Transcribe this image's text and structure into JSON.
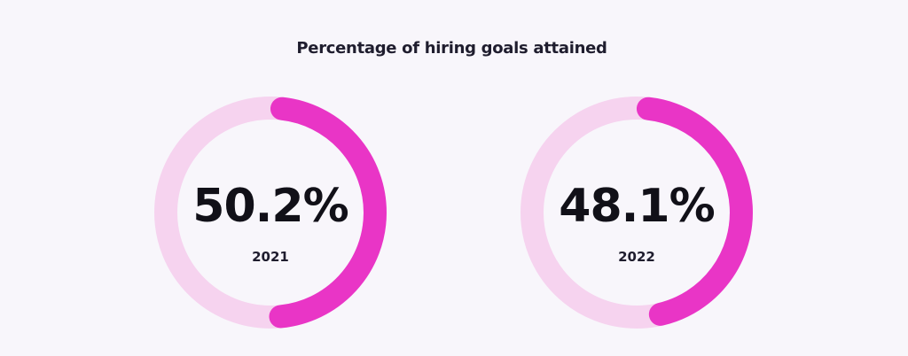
{
  "colors": {
    "background": "#f8f6fb",
    "track": "#f6d3ef",
    "fill": "#e935c6",
    "text": "#111018"
  },
  "chart_data": {
    "type": "donut",
    "title": "Percentage of hiring goals attained",
    "series": [
      {
        "label": "2021",
        "value": 50.2,
        "value_text": "50.2%"
      },
      {
        "label": "2022",
        "value": 48.1,
        "value_text": "48.1%"
      }
    ]
  }
}
